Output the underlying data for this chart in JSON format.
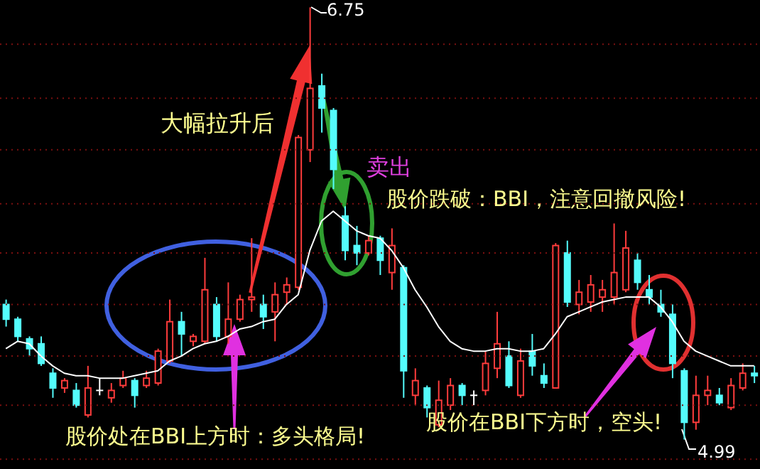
{
  "chart_data": {
    "type": "candlestick",
    "categories": [
      null,
      null,
      null,
      null,
      null,
      null,
      null,
      null,
      null,
      null,
      null,
      null,
      null,
      null,
      null,
      null,
      null,
      null,
      null,
      null,
      null,
      null,
      null,
      null,
      null,
      null,
      null,
      null,
      null,
      null,
      null,
      null,
      null,
      null,
      null,
      null,
      null,
      null,
      null,
      null,
      null,
      null,
      null,
      null,
      null,
      null,
      null,
      null,
      null,
      null,
      null,
      null,
      null,
      null,
      null,
      null,
      null,
      null,
      null,
      null,
      null,
      null,
      null,
      null,
      null
    ],
    "ohlc": [
      [
        5.54,
        5.56,
        5.45,
        5.48
      ],
      [
        5.48,
        5.49,
        5.39,
        5.41
      ],
      [
        5.4,
        5.41,
        5.33,
        5.36
      ],
      [
        5.38,
        5.41,
        5.29,
        5.3
      ],
      [
        5.26,
        5.28,
        5.16,
        5.2
      ],
      [
        5.2,
        5.24,
        5.18,
        5.23
      ],
      [
        5.19,
        5.22,
        5.12,
        5.13
      ],
      [
        5.09,
        5.29,
        5.08,
        5.2
      ],
      [
        5.19,
        5.24,
        5.17,
        5.19
      ],
      [
        5.16,
        5.22,
        5.14,
        5.19
      ],
      [
        5.21,
        5.27,
        5.2,
        5.24
      ],
      [
        5.23,
        5.24,
        5.12,
        5.17
      ],
      [
        5.21,
        5.27,
        5.2,
        5.24
      ],
      [
        5.22,
        5.36,
        5.21,
        5.35
      ],
      [
        5.31,
        5.56,
        5.3,
        5.47
      ],
      [
        5.47,
        5.51,
        5.33,
        5.42
      ],
      [
        5.39,
        5.42,
        5.37,
        5.41
      ],
      [
        5.39,
        5.73,
        5.38,
        5.6
      ],
      [
        5.54,
        5.57,
        5.39,
        5.41
      ],
      [
        5.41,
        5.63,
        5.38,
        5.48
      ],
      [
        5.48,
        5.58,
        5.47,
        5.56
      ],
      [
        5.56,
        5.81,
        5.51,
        5.57
      ],
      [
        5.54,
        5.58,
        5.44,
        5.49
      ],
      [
        5.51,
        5.63,
        5.39,
        5.58
      ],
      [
        5.59,
        5.65,
        5.54,
        5.62
      ],
      [
        5.61,
        6.23,
        5.6,
        6.22
      ],
      [
        6.17,
        6.75,
        6.12,
        6.42
      ],
      [
        6.43,
        6.48,
        6.24,
        6.34
      ],
      [
        6.33,
        6.34,
        6.01,
        6.09
      ],
      [
        5.9,
        5.94,
        5.72,
        5.76
      ],
      [
        5.78,
        5.86,
        5.7,
        5.75
      ],
      [
        5.75,
        5.82,
        5.74,
        5.8
      ],
      [
        5.81,
        5.82,
        5.66,
        5.72
      ],
      [
        5.67,
        5.85,
        5.6,
        5.78
      ],
      [
        5.69,
        5.7,
        5.16,
        5.27
      ],
      [
        5.17,
        5.28,
        5.13,
        5.23
      ],
      [
        5.2,
        5.21,
        5.08,
        5.12
      ],
      [
        5.05,
        5.23,
        5.04,
        5.15
      ],
      [
        5.13,
        5.24,
        5.11,
        5.21
      ],
      [
        5.21,
        5.22,
        5.13,
        5.17
      ],
      [
        5.17,
        5.19,
        5.13,
        5.17
      ],
      [
        5.19,
        5.35,
        5.17,
        5.3
      ],
      [
        5.28,
        5.51,
        5.24,
        5.38
      ],
      [
        5.33,
        5.39,
        5.2,
        5.21
      ],
      [
        5.17,
        5.36,
        5.16,
        5.31
      ],
      [
        5.35,
        5.42,
        5.25,
        5.29
      ],
      [
        5.25,
        5.3,
        5.2,
        5.22
      ],
      [
        5.2,
        5.79,
        5.2,
        5.78
      ],
      [
        5.75,
        5.8,
        5.53,
        5.55
      ],
      [
        5.54,
        5.64,
        5.5,
        5.59
      ],
      [
        5.55,
        5.66,
        5.51,
        5.62
      ],
      [
        5.57,
        5.64,
        5.51,
        5.6
      ],
      [
        5.57,
        5.87,
        5.54,
        5.67
      ],
      [
        5.6,
        5.84,
        5.59,
        5.77
      ],
      [
        5.72,
        5.75,
        5.6,
        5.63
      ],
      [
        5.6,
        5.66,
        5.54,
        5.57
      ],
      [
        5.54,
        5.6,
        5.49,
        5.51
      ],
      [
        5.5,
        5.54,
        5.24,
        5.3
      ],
      [
        5.27,
        5.28,
        4.99,
        5.06
      ],
      [
        5.06,
        5.25,
        5.03,
        5.17
      ],
      [
        5.17,
        5.25,
        5.13,
        5.19
      ],
      [
        5.17,
        5.2,
        5.13,
        5.14
      ],
      [
        5.12,
        5.24,
        5.11,
        5.21
      ],
      [
        5.2,
        5.3,
        5.19,
        5.26
      ],
      [
        5.26,
        5.29,
        5.22,
        5.25
      ]
    ],
    "colors": [
      "#54fcfc",
      "#54fcfc",
      "#54fcfc",
      "#54fcfc",
      "#54fcfc",
      "#ff3c3c",
      "#54fcfc",
      "#ff3c3c",
      "#ffffff",
      "#ff3c3c",
      "#ff3c3c",
      "#54fcfc",
      "#ff3c3c",
      "#ff3c3c",
      "#ff3c3c",
      "#54fcfc",
      "#ff3c3c",
      "#ff3c3c",
      "#54fcfc",
      "#ff3c3c",
      "#ff3c3c",
      "#ff3c3c",
      "#54fcfc",
      "#ff3c3c",
      "#ff3c3c",
      "#ff3c3c",
      "#ff3c3c",
      "#54fcfc",
      "#54fcfc",
      "#54fcfc",
      "#54fcfc",
      "#ff3c3c",
      "#54fcfc",
      "#ff3c3c",
      "#54fcfc",
      "#ff3c3c",
      "#54fcfc",
      "#ff3c3c",
      "#ff3c3c",
      "#54fcfc",
      "#ffffff",
      "#ff3c3c",
      "#ff3c3c",
      "#54fcfc",
      "#ff3c3c",
      "#54fcfc",
      "#54fcfc",
      "#ff3c3c",
      "#54fcfc",
      "#ff3c3c",
      "#ff3c3c",
      "#ff3c3c",
      "#ff3c3c",
      "#ff3c3c",
      "#54fcfc",
      "#54fcfc",
      "#54fcfc",
      "#54fcfc",
      "#54fcfc",
      "#ff3c3c",
      "#ff3c3c",
      "#54fcfc",
      "#ff3c3c",
      "#ff3c3c",
      "#54fcfc"
    ],
    "series": [
      {
        "type": "line",
        "color": "#ffffff",
        "values": [
          5.36,
          5.39,
          5.38,
          5.33,
          5.29,
          5.26,
          5.25,
          5.25,
          5.24,
          5.24,
          5.24,
          5.25,
          5.26,
          5.27,
          5.31,
          5.33,
          5.36,
          5.38,
          5.39,
          5.41,
          5.44,
          5.45,
          5.47,
          5.48,
          5.54,
          5.58,
          5.76,
          5.88,
          5.92,
          5.88,
          5.84,
          5.82,
          5.81,
          5.76,
          5.69,
          5.6,
          5.53,
          5.45,
          5.39,
          5.36,
          5.35,
          5.35,
          5.36,
          5.36,
          5.35,
          5.35,
          5.36,
          5.42,
          5.49,
          5.51,
          5.53,
          5.55,
          5.56,
          5.57,
          5.57,
          5.57,
          5.53,
          5.47,
          5.39,
          5.35,
          5.33,
          5.31,
          5.29,
          5.29,
          5.29
        ]
      }
    ],
    "ylim": [
      4.87,
      6.78
    ],
    "yticks": [
      {
        "value": 4.91,
        "label": null
      },
      {
        "value": 5.13,
        "label": null
      },
      {
        "value": 5.33,
        "label": null
      },
      {
        "value": 5.54,
        "label": null
      },
      {
        "value": 5.75,
        "label": null
      },
      {
        "value": 5.95,
        "label": null
      },
      {
        "value": 6.17,
        "label": null
      },
      {
        "value": 6.38,
        "label": null
      },
      {
        "value": 6.6,
        "label": null
      }
    ],
    "grid": "y",
    "tick_labels": false,
    "annotations": [
      "6.75",
      "4.99",
      "大幅拉升后",
      "卖出",
      "股价跌破：BBI，注意回撤风险!",
      "股价处在BBI上方时：多头格局!",
      "股价在BBI下方时，空头!"
    ]
  }
}
